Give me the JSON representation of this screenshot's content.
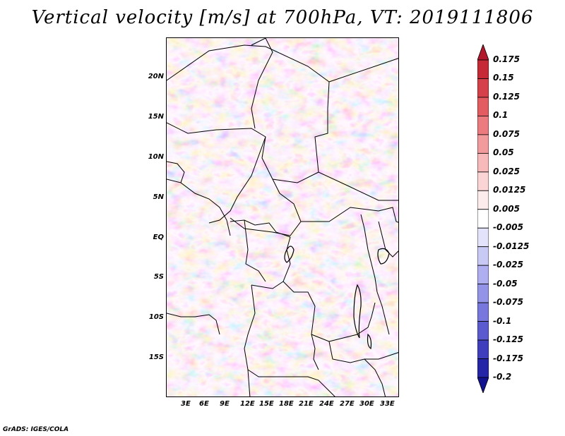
{
  "title": "Vertical velocity [m/s] at 700hPa, VT: 2019111806",
  "credit": "GrADS: IGES/COLA",
  "lat_labels": [
    "20N",
    "15N",
    "10N",
    "5N",
    "EQ",
    "5S",
    "10S",
    "15S"
  ],
  "lon_labels": [
    "3E",
    "6E",
    "9E",
    "12E",
    "15E",
    "18E",
    "21E",
    "24E",
    "27E",
    "30E",
    "33E"
  ],
  "colorbar": {
    "labels": [
      "0.175",
      "0.15",
      "0.125",
      "0.1",
      "0.075",
      "0.05",
      "0.025",
      "0.0125",
      "0.005",
      "-0.005",
      "-0.0125",
      "-0.025",
      "-0.05",
      "-0.075",
      "-0.1",
      "-0.125",
      "-0.175",
      "-0.2"
    ],
    "colors": [
      "#b2182b",
      "#c62a36",
      "#d6404a",
      "#e25c62",
      "#ec7b7f",
      "#f29b9d",
      "#f7b9ba",
      "#fbd5d5",
      "#fdecec",
      "#ffffff",
      "#e3e3fb",
      "#c9c9f5",
      "#aeaef0",
      "#9393e8",
      "#7777dd",
      "#5b5bcf",
      "#3f3fbe",
      "#2525a8",
      "#12128f"
    ]
  }
}
